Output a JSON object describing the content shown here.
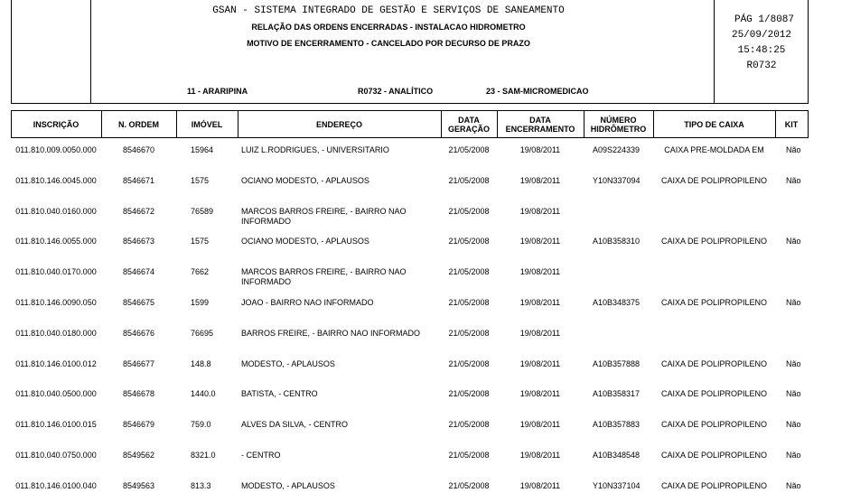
{
  "header": {
    "system": "GSAN - SISTEMA INTEGRADO DE GESTÃO E SERVIÇOS DE SANEAMENTO",
    "report": "RELAÇÃO DAS ORDENS ENCERRADAS - INSTALACAO HIDROMETRO",
    "reason": "MOTIVO DE ENCERRAMENTO - CANCELADO POR DECURSO DE PRAZO",
    "locality": "11 - ARARIPINA",
    "report_code": "R0732 - ANALÍTICO",
    "sector": "23 - SAM-MICROMEDICAO",
    "page": "PÁG 1/8087",
    "date": "25/09/2012",
    "time": "15:48:25",
    "code": "R0732"
  },
  "table": {
    "columns": [
      "INSCRIÇÃO",
      "N. ORDEM",
      "IMÓVEL",
      "ENDEREÇO",
      "DATA GERAÇÃO",
      "DATA ENCERRAMENTO",
      "NÚMERO HIDRÔMETRO",
      "TIPO DE CAIXA",
      "KIT"
    ],
    "rows": [
      {
        "inscricao": "011.810.009.0050.000",
        "ordem": "8546670",
        "imovel": "15964",
        "endereco": "LUIZ L.RODRIGUES, - UNIVERSITARIO",
        "geracao": "21/05/2008",
        "encerramento": "19/08/2011",
        "hidrometro": "A09S224339",
        "caixa": "CAIXA PRE-MOLDADA EM",
        "kit": "Não"
      },
      {
        "inscricao": "011.810.146.0045.000",
        "ordem": "8546671",
        "imovel": "1575",
        "endereco": "OCIANO MODESTO, - APLAUSOS",
        "geracao": "21/05/2008",
        "encerramento": "19/08/2011",
        "hidrometro": "Y10N337094",
        "caixa": "CAIXA DE POLIPROPILENO",
        "kit": "Não"
      },
      {
        "inscricao": "011.810.040.0160.000",
        "ordem": "8546672",
        "imovel": "76589",
        "endereco": "MARCOS BARROS FREIRE, - BAIRRO NAO INFORMADO",
        "geracao": "21/05/2008",
        "encerramento": "19/08/2011"
      },
      {
        "inscricao": "011.810.146.0055.000",
        "ordem": "8546673",
        "imovel": "1575",
        "endereco": "OCIANO MODESTO, - APLAUSOS",
        "geracao": "21/05/2008",
        "encerramento": "19/08/2011",
        "hidrometro": "A10B358310",
        "caixa": "CAIXA DE POLIPROPILENO",
        "kit": "Não"
      },
      {
        "inscricao": "011.810.040.0170.000",
        "ordem": "8546674",
        "imovel": "7662",
        "endereco": "MARCOS BARROS FREIRE, - BAIRRO NAO INFORMADO",
        "geracao": "21/05/2008",
        "encerramento": "19/08/2011"
      },
      {
        "inscricao": "011.810.146.0090.050",
        "ordem": "8546675",
        "imovel": "1599",
        "endereco": "JOAO - BAIRRO NAO INFORMADO",
        "geracao": "21/05/2008",
        "encerramento": "19/08/2011",
        "hidrometro": "A10B348375",
        "caixa": "CAIXA DE POLIPROPILENO",
        "kit": "Não"
      },
      {
        "inscricao": "011.810.040.0180.000",
        "ordem": "8546676",
        "imovel": "76695",
        "endereco": "BARROS FREIRE, - BAIRRO NAO INFORMADO",
        "geracao": "21/05/2008",
        "encerramento": "19/08/2011"
      },
      {
        "inscricao": "011.810.146.0100.012",
        "ordem": "8546677",
        "imovel": "148.8",
        "endereco": "MODESTO, - APLAUSOS",
        "geracao": "21/05/2008",
        "encerramento": "19/08/2011",
        "hidrometro": "A10B357888",
        "caixa": "CAIXA DE POLIPROPILENO",
        "kit": "Não"
      },
      {
        "inscricao": "011.810.040.0500.000",
        "ordem": "8546678",
        "imovel": "1440.0",
        "endereco": "BATISTA, - CENTRO",
        "geracao": "21/05/2008",
        "encerramento": "19/08/2011",
        "hidrometro": "A10B358317",
        "caixa": "CAIXA DE POLIPROPILENO",
        "kit": "Não"
      },
      {
        "inscricao": "011.810.146.0100.015",
        "ordem": "8546679",
        "imovel": "759.0",
        "endereco": "ALVES DA SILVA, - CENTRO",
        "geracao": "21/05/2008",
        "encerramento": "19/08/2011",
        "hidrometro": "A10B357883",
        "caixa": "CAIXA DE POLIPROPILENO",
        "kit": "Não"
      },
      {
        "inscricao": "011.810.040.0750.000",
        "ordem": "8549562",
        "imovel": "8321.0",
        "endereco": "- CENTRO",
        "geracao": "21/05/2008",
        "encerramento": "19/08/2011",
        "hidrometro": "A10B348548",
        "caixa": "CAIXA DE POLIPROPILENO",
        "kit": "Não"
      },
      {
        "inscricao": "011.810.146.0100.040",
        "ordem": "8549563",
        "imovel": "813.3",
        "endereco": "MODESTO, - APLAUSOS",
        "geracao": "21/05/2008",
        "encerramento": "19/08/2011",
        "hidrometro": "Y10N337104",
        "caixa": "CAIXA DE POLIPROPILENO",
        "kit": "Não"
      }
    ]
  }
}
